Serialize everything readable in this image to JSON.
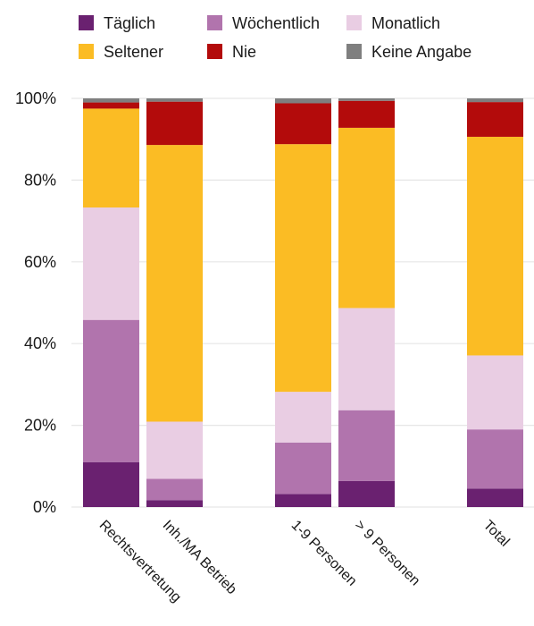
{
  "chart_data": {
    "type": "bar",
    "stacked": true,
    "categories": [
      "Rechtsvertretung",
      "Inh./MA Betrieb",
      "1-9 Personen",
      "> 9 Personen",
      "Total"
    ],
    "series": [
      {
        "name": "Täglich",
        "color": "#6a2170",
        "values": [
          11,
          1.7,
          3.2,
          6.4,
          4.5
        ]
      },
      {
        "name": "Wöchentlich",
        "color": "#b174ad",
        "values": [
          34.8,
          5.2,
          12.6,
          17.3,
          14.5
        ]
      },
      {
        "name": "Monatlich",
        "color": "#e9cde3",
        "values": [
          27.5,
          14,
          12.4,
          25,
          18.1
        ]
      },
      {
        "name": "Seltener",
        "color": "#fbbc24",
        "values": [
          24.2,
          67.7,
          60.6,
          44.1,
          53.5
        ]
      },
      {
        "name": "Nie",
        "color": "#b30b0b",
        "values": [
          1.5,
          10.6,
          10,
          6.6,
          8.5
        ]
      },
      {
        "name": "Keine Angabe",
        "color": "#7f7f7f",
        "values": [
          1,
          0.8,
          1.2,
          0.6,
          0.9
        ]
      }
    ],
    "ylim": [
      0,
      100
    ],
    "yticks": [
      "0%",
      "20%",
      "40%",
      "60%",
      "80%",
      "100%"
    ],
    "grid": true,
    "legend_position": "top"
  }
}
